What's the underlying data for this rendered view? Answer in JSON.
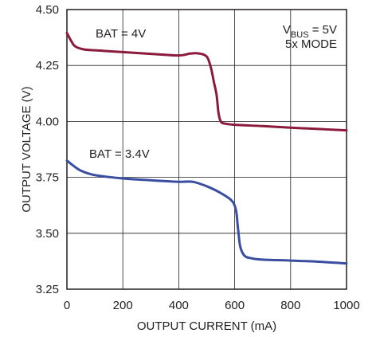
{
  "chart_data": {
    "type": "line",
    "xlabel": "OUTPUT CURRENT (mA)",
    "ylabel": "OUTPUT VOLTAGE (V)",
    "xlim": [
      0,
      1000
    ],
    "ylim": [
      3.25,
      4.5
    ],
    "x_ticks": [
      "0",
      "200",
      "400",
      "600",
      "800",
      "1000"
    ],
    "y_ticks": [
      "3.25",
      "3.50",
      "3.75",
      "4.00",
      "4.25",
      "4.50"
    ],
    "grid": true,
    "annotation": {
      "main": "V",
      "sub": "BUS",
      "rest": " = 5V",
      "line2": "5x MODE"
    },
    "series": [
      {
        "name": "BAT = 4V",
        "color": "#8b1a3c",
        "points": [
          [
            0,
            4.395
          ],
          [
            15,
            4.36
          ],
          [
            30,
            4.335
          ],
          [
            60,
            4.322
          ],
          [
            100,
            4.318
          ],
          [
            200,
            4.31
          ],
          [
            300,
            4.302
          ],
          [
            400,
            4.295
          ],
          [
            440,
            4.303
          ],
          [
            470,
            4.304
          ],
          [
            500,
            4.29
          ],
          [
            515,
            4.24
          ],
          [
            525,
            4.18
          ],
          [
            535,
            4.12
          ],
          [
            542,
            4.04
          ],
          [
            550,
            4.0
          ],
          [
            565,
            3.99
          ],
          [
            600,
            3.985
          ],
          [
            700,
            3.979
          ],
          [
            800,
            3.972
          ],
          [
            900,
            3.966
          ],
          [
            1000,
            3.96
          ]
        ]
      },
      {
        "name": "BAT = 3.4V",
        "color": "#3a4ea1",
        "points": [
          [
            0,
            3.825
          ],
          [
            20,
            3.805
          ],
          [
            50,
            3.78
          ],
          [
            100,
            3.76
          ],
          [
            200,
            3.745
          ],
          [
            300,
            3.737
          ],
          [
            400,
            3.73
          ],
          [
            450,
            3.73
          ],
          [
            500,
            3.71
          ],
          [
            550,
            3.68
          ],
          [
            590,
            3.645
          ],
          [
            605,
            3.6
          ],
          [
            612,
            3.52
          ],
          [
            620,
            3.44
          ],
          [
            635,
            3.4
          ],
          [
            660,
            3.388
          ],
          [
            700,
            3.382
          ],
          [
            800,
            3.378
          ],
          [
            900,
            3.373
          ],
          [
            1000,
            3.365
          ]
        ]
      }
    ]
  }
}
